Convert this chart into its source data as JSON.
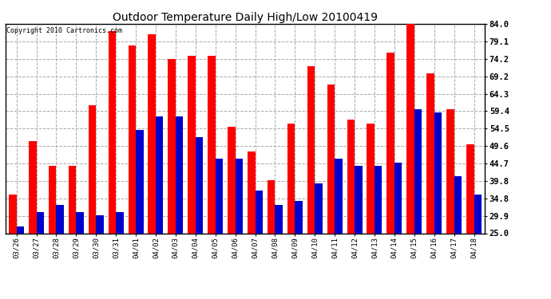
{
  "title": "Outdoor Temperature Daily High/Low 20100419",
  "copyright": "Copyright 2010 Cartronics.com",
  "dates": [
    "03/26",
    "03/27",
    "03/28",
    "03/29",
    "03/30",
    "03/31",
    "04/01",
    "04/02",
    "04/03",
    "04/04",
    "04/05",
    "04/06",
    "04/07",
    "04/08",
    "04/09",
    "04/10",
    "04/11",
    "04/12",
    "04/13",
    "04/14",
    "04/15",
    "04/16",
    "04/17",
    "04/18"
  ],
  "highs": [
    36.0,
    51.0,
    44.0,
    44.0,
    61.0,
    82.0,
    78.0,
    81.0,
    74.0,
    75.0,
    75.0,
    55.0,
    48.0,
    40.0,
    56.0,
    72.0,
    67.0,
    57.0,
    56.0,
    76.0,
    84.0,
    70.0,
    60.0,
    50.0
  ],
  "lows": [
    27.0,
    31.0,
    33.0,
    31.0,
    30.0,
    31.0,
    54.0,
    58.0,
    58.0,
    52.0,
    46.0,
    46.0,
    37.0,
    33.0,
    34.0,
    39.0,
    46.0,
    44.0,
    44.0,
    45.0,
    60.0,
    59.0,
    41.0,
    36.0
  ],
  "high_color": "#ff0000",
  "low_color": "#0000cc",
  "bg_color": "#ffffff",
  "grid_color": "#aaaaaa",
  "ytick_values": [
    25.0,
    29.9,
    34.8,
    39.8,
    44.7,
    49.6,
    54.5,
    59.4,
    64.3,
    69.2,
    74.2,
    79.1,
    84.0
  ],
  "ytick_labels": [
    "25.0",
    "29.9",
    "34.8",
    "39.8",
    "44.7",
    "49.6",
    "54.5",
    "59.4",
    "64.3",
    "69.2",
    "74.2",
    "79.1",
    "84.0"
  ],
  "ymin": 25.0,
  "ymax": 84.0,
  "bar_width": 0.38
}
